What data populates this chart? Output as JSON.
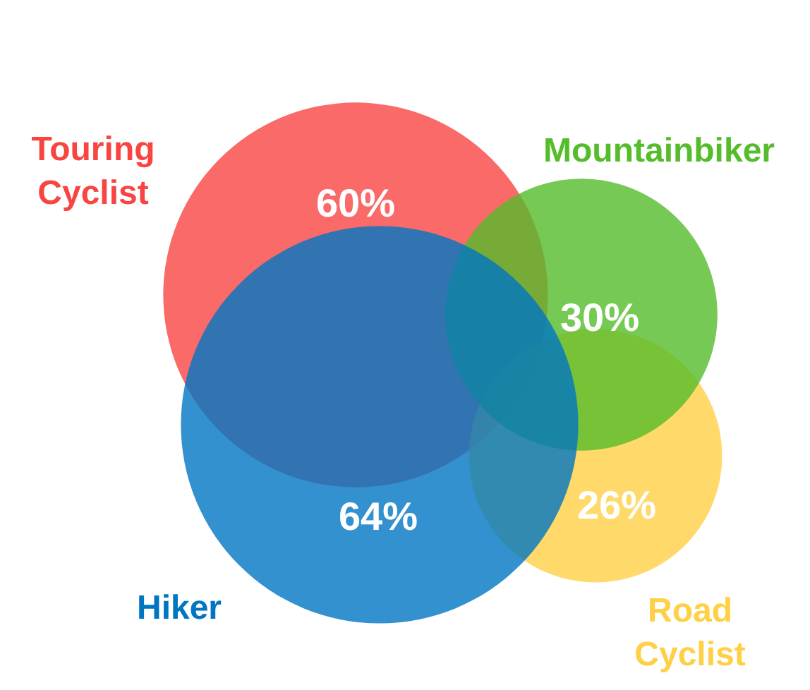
{
  "chart_data": {
    "type": "other",
    "categories": [
      "Touring Cyclist",
      "Road Cyclist",
      "Mountainbiker",
      "Hiker"
    ],
    "values": [
      60,
      26,
      30,
      64
    ],
    "value_labels": [
      "60%",
      "26%",
      "30%",
      "64%"
    ],
    "colors": [
      "#f96a68",
      "#ffd96a",
      "#77c955",
      "#3391cf"
    ]
  }
}
